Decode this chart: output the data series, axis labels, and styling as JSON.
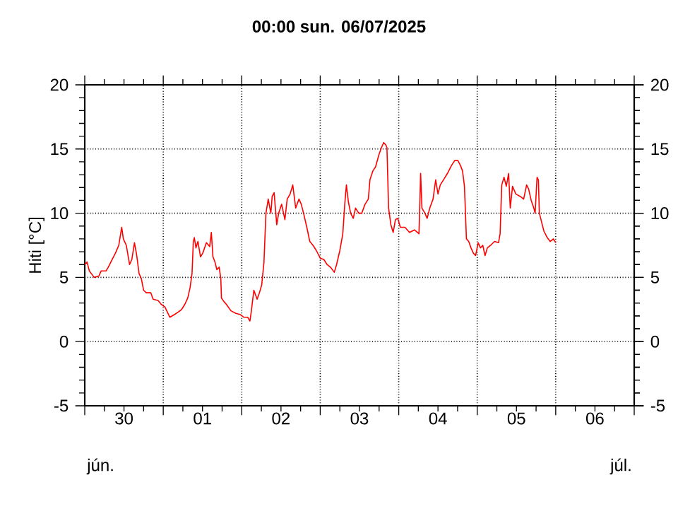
{
  "chart_data": {
    "type": "line",
    "title": "00:00   sun.  06/07/2025",
    "ylabel": "Hiti [°C]",
    "annotations": [
      "jún.",
      "júl."
    ],
    "xlim": [
      "2025-06-30T00:00",
      "2025-07-07T00:00"
    ],
    "xticks": [
      {
        "value": "2025-06-30T00:00",
        "label": null
      },
      {
        "value": "2025-06-30T12:00",
        "label": "30"
      },
      {
        "value": "2025-07-01T00:00",
        "label": null
      },
      {
        "value": "2025-07-01T12:00",
        "label": "01"
      },
      {
        "value": "2025-07-02T00:00",
        "label": null
      },
      {
        "value": "2025-07-02T12:00",
        "label": "02"
      },
      {
        "value": "2025-07-03T00:00",
        "label": null
      },
      {
        "value": "2025-07-03T12:00",
        "label": "03"
      },
      {
        "value": "2025-07-04T00:00",
        "label": null
      },
      {
        "value": "2025-07-04T12:00",
        "label": "04"
      },
      {
        "value": "2025-07-05T00:00",
        "label": null
      },
      {
        "value": "2025-07-05T12:00",
        "label": "05"
      },
      {
        "value": "2025-07-06T00:00",
        "label": null
      },
      {
        "value": "2025-07-06T12:00",
        "label": "06"
      },
      {
        "value": "2025-07-07T00:00",
        "label": null
      }
    ],
    "ylim": [
      -5,
      20
    ],
    "yticks": [
      -5,
      0,
      5,
      10,
      15,
      20
    ],
    "y2lim": [
      -5,
      20
    ],
    "y2ticks": [
      -5,
      0,
      5,
      10,
      15,
      20
    ],
    "grid": true,
    "marker": "none",
    "line_style": "solid",
    "series": [
      {
        "color": "#ff0000",
        "x": [
          "2025-06-30T00:00",
          "2025-06-30T00:42",
          "2025-06-30T01:24",
          "2025-06-30T02:54",
          "2025-06-30T04:18",
          "2025-06-30T05:00",
          "2025-06-30T06:30",
          "2025-06-30T07:12",
          "2025-06-30T08:24",
          "2025-06-30T09:24",
          "2025-06-30T10:24",
          "2025-06-30T11:18",
          "2025-06-30T11:48",
          "2025-06-30T12:42",
          "2025-06-30T13:42",
          "2025-06-30T14:24",
          "2025-06-30T15:12",
          "2025-06-30T15:54",
          "2025-06-30T16:36",
          "2025-06-30T17:18",
          "2025-06-30T18:00",
          "2025-06-30T18:48",
          "2025-06-30T20:12",
          "2025-06-30T20:54",
          "2025-06-30T22:24",
          "2025-06-30T23:24",
          "2025-07-01T00:30",
          "2025-07-01T02:00",
          "2025-07-01T03:24",
          "2025-07-01T04:36",
          "2025-07-01T05:36",
          "2025-07-01T06:36",
          "2025-07-01T07:30",
          "2025-07-01T08:12",
          "2025-07-01T08:48",
          "2025-07-01T09:12",
          "2025-07-01T09:30",
          "2025-07-01T10:00",
          "2025-07-01T10:36",
          "2025-07-01T11:24",
          "2025-07-01T12:06",
          "2025-07-01T13:12",
          "2025-07-01T14:12",
          "2025-07-01T14:42",
          "2025-07-01T15:12",
          "2025-07-01T15:48",
          "2025-07-01T16:24",
          "2025-07-01T17:06",
          "2025-07-01T17:36",
          "2025-07-01T17:48",
          "2025-07-01T18:36",
          "2025-07-01T19:18",
          "2025-07-01T20:42",
          "2025-07-01T22:12",
          "2025-07-01T23:36",
          "2025-07-02T00:36",
          "2025-07-02T01:48",
          "2025-07-02T02:30",
          "2025-07-02T02:54",
          "2025-07-02T03:42",
          "2025-07-02T04:42",
          "2025-07-02T05:24",
          "2025-07-02T06:06",
          "2025-07-02T06:48",
          "2025-07-02T07:24",
          "2025-07-02T08:06",
          "2025-07-02T08:54",
          "2025-07-02T09:18",
          "2025-07-02T09:54",
          "2025-07-02T10:42",
          "2025-07-02T11:18",
          "2025-07-02T12:12",
          "2025-07-02T13:12",
          "2025-07-02T13:54",
          "2025-07-02T14:48",
          "2025-07-02T15:36",
          "2025-07-02T16:30",
          "2025-07-02T17:30",
          "2025-07-02T18:12",
          "2025-07-02T18:54",
          "2025-07-02T19:54",
          "2025-07-02T20:48",
          "2025-07-02T21:48",
          "2025-07-02T22:48",
          "2025-07-03T00:00",
          "2025-07-03T01:06",
          "2025-07-03T02:06",
          "2025-07-03T03:06",
          "2025-07-03T04:18",
          "2025-07-03T05:00",
          "2025-07-03T06:00",
          "2025-07-03T06:54",
          "2025-07-03T07:30",
          "2025-07-03T08:00",
          "2025-07-03T08:36",
          "2025-07-03T09:18",
          "2025-07-03T10:06",
          "2025-07-03T10:48",
          "2025-07-03T11:48",
          "2025-07-03T12:42",
          "2025-07-03T13:42",
          "2025-07-03T14:42",
          "2025-07-03T15:12",
          "2025-07-03T16:06",
          "2025-07-03T16:54",
          "2025-07-03T18:00",
          "2025-07-03T18:42",
          "2025-07-03T19:24",
          "2025-07-03T20:06",
          "2025-07-03T20:24",
          "2025-07-03T20:54",
          "2025-07-03T21:36",
          "2025-07-03T22:18",
          "2025-07-03T23:00",
          "2025-07-03T23:42",
          "2025-07-04T00:30",
          "2025-07-04T01:54",
          "2025-07-04T03:18",
          "2025-07-04T04:48",
          "2025-07-04T06:12",
          "2025-07-04T06:42",
          "2025-07-04T07:06",
          "2025-07-04T08:00",
          "2025-07-04T08:42",
          "2025-07-04T09:30",
          "2025-07-04T10:30",
          "2025-07-04T11:18",
          "2025-07-04T12:00",
          "2025-07-04T12:42",
          "2025-07-04T13:42",
          "2025-07-04T14:54",
          "2025-07-04T16:06",
          "2025-07-04T17:06",
          "2025-07-04T18:06",
          "2025-07-04T18:54",
          "2025-07-04T19:30",
          "2025-07-04T20:06",
          "2025-07-04T20:42",
          "2025-07-04T21:24",
          "2025-07-04T22:06",
          "2025-07-04T22:48",
          "2025-07-04T23:30",
          "2025-07-05T00:18",
          "2025-07-05T01:00",
          "2025-07-05T01:42",
          "2025-07-05T02:24",
          "2025-07-05T03:06",
          "2025-07-05T04:06",
          "2025-07-05T05:18",
          "2025-07-05T06:30",
          "2025-07-05T07:00",
          "2025-07-05T07:30",
          "2025-07-05T08:12",
          "2025-07-05T08:54",
          "2025-07-05T09:36",
          "2025-07-05T10:06",
          "2025-07-05T10:48",
          "2025-07-05T11:48",
          "2025-07-05T13:12",
          "2025-07-05T14:12",
          "2025-07-05T15:06",
          "2025-07-05T15:42",
          "2025-07-05T16:30",
          "2025-07-05T17:18",
          "2025-07-05T17:42",
          "2025-07-05T18:18",
          "2025-07-05T18:42",
          "2025-07-05T19:00",
          "2025-07-05T19:42",
          "2025-07-05T20:24",
          "2025-07-05T21:24",
          "2025-07-05T22:18",
          "2025-07-05T23:18",
          "2025-07-06T00:00"
        ],
        "values": [
          6.0,
          6.2,
          5.5,
          5.0,
          5.1,
          5.5,
          5.5,
          5.8,
          6.4,
          6.9,
          7.5,
          8.9,
          8.0,
          7.5,
          6.0,
          6.4,
          7.7,
          6.7,
          5.3,
          4.9,
          4.0,
          3.8,
          3.8,
          3.3,
          3.2,
          2.9,
          2.7,
          1.9,
          2.1,
          2.3,
          2.5,
          2.9,
          3.4,
          4.2,
          5.3,
          7.8,
          8.1,
          7.3,
          7.8,
          6.6,
          6.9,
          7.7,
          7.4,
          8.5,
          6.6,
          6.2,
          5.6,
          5.8,
          4.9,
          3.4,
          3.1,
          2.9,
          2.4,
          2.2,
          2.1,
          1.9,
          1.9,
          1.6,
          2.3,
          4.0,
          3.3,
          3.8,
          4.4,
          6.2,
          10.0,
          11.1,
          10.0,
          11.3,
          11.6,
          9.1,
          10.0,
          10.7,
          9.5,
          11.1,
          11.5,
          12.2,
          10.4,
          11.1,
          10.7,
          10.0,
          8.9,
          7.8,
          7.5,
          7.1,
          6.5,
          6.4,
          6.0,
          5.8,
          5.4,
          6.0,
          7.1,
          8.4,
          10.7,
          12.2,
          10.9,
          10.0,
          9.6,
          10.4,
          10.0,
          10.0,
          10.7,
          11.1,
          12.6,
          13.3,
          13.6,
          14.6,
          15.1,
          15.5,
          15.3,
          15.1,
          10.4,
          9.1,
          8.5,
          9.5,
          9.6,
          8.9,
          8.9,
          8.5,
          8.7,
          8.4,
          13.1,
          10.4,
          10.0,
          9.6,
          10.4,
          11.1,
          12.6,
          11.5,
          12.2,
          12.6,
          13.1,
          13.7,
          14.1,
          14.1,
          13.7,
          13.3,
          12.1,
          8.0,
          7.8,
          7.3,
          6.9,
          6.7,
          7.7,
          7.3,
          7.5,
          6.7,
          7.3,
          7.5,
          7.8,
          7.7,
          8.4,
          12.2,
          12.8,
          12.1,
          13.1,
          10.4,
          12.1,
          11.5,
          11.3,
          11.1,
          12.2,
          11.9,
          11.0,
          10.4,
          10.0,
          12.8,
          12.6,
          10.0,
          9.3,
          8.6,
          8.1,
          7.8,
          8.0,
          7.7
        ]
      }
    ]
  }
}
